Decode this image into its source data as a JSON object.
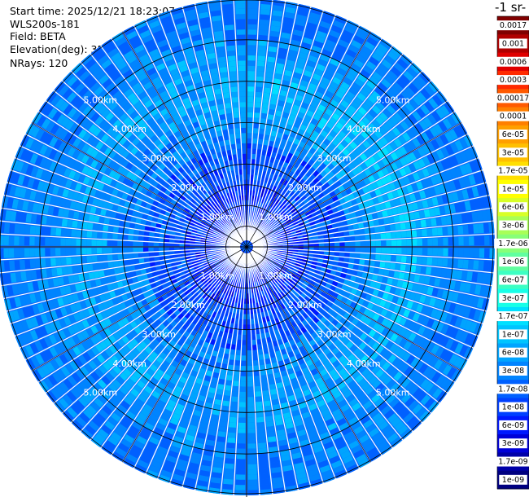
{
  "info": {
    "start_time": "Start time: 2025/12/21 18:23:07",
    "instrument": "WLS200s-181",
    "field": "Field: BETA",
    "elevation": "Elevation(deg): 35.00",
    "nrays": "NRays: 120"
  },
  "colorbar": {
    "unit_label": "-1 sr-",
    "labels": [
      "0.0017",
      "0.001",
      "0.0006",
      "0.0003",
      "0.00017",
      "0.0001",
      "6e-05",
      "3e-05",
      "1.7e-05",
      "1e-05",
      "6e-06",
      "3e-06",
      "1.7e-06",
      "1e-06",
      "6e-07",
      "3e-07",
      "1.7e-07",
      "1e-07",
      "6e-08",
      "3e-08",
      "1.7e-08",
      "1e-08",
      "6e-09",
      "3e-09",
      "1.7e-09",
      "1e-09"
    ],
    "colors": [
      "#800000",
      "#b00000",
      "#e00000",
      "#ff2a00",
      "#ff5a00",
      "#ff7f00",
      "#ff9f00",
      "#ffbf00",
      "#ffdf00",
      "#ffff00",
      "#d8ff27",
      "#a8ff57",
      "#87ff78",
      "#60ff9f",
      "#3cffc3",
      "#18ffe7",
      "#00e0ff",
      "#00c4ff",
      "#00a4ff",
      "#0084ff",
      "#0060ff",
      "#0040ff",
      "#0018ff",
      "#0000d8",
      "#0000a8",
      "#000080"
    ]
  },
  "chart_data": {
    "type": "polar-ppi",
    "title": "",
    "field": "BETA",
    "elevation_deg": 35.0,
    "n_rays": 120,
    "max_range_km": 6.0,
    "range_ring_labels": [
      "1.00km",
      "2.00km",
      "3.00km",
      "4.00km",
      "5.00km"
    ],
    "range_rings_km": [
      1,
      2,
      3,
      4,
      5
    ],
    "color_scale": "log",
    "colorbar_range": [
      1e-09,
      0.0017
    ]
  }
}
